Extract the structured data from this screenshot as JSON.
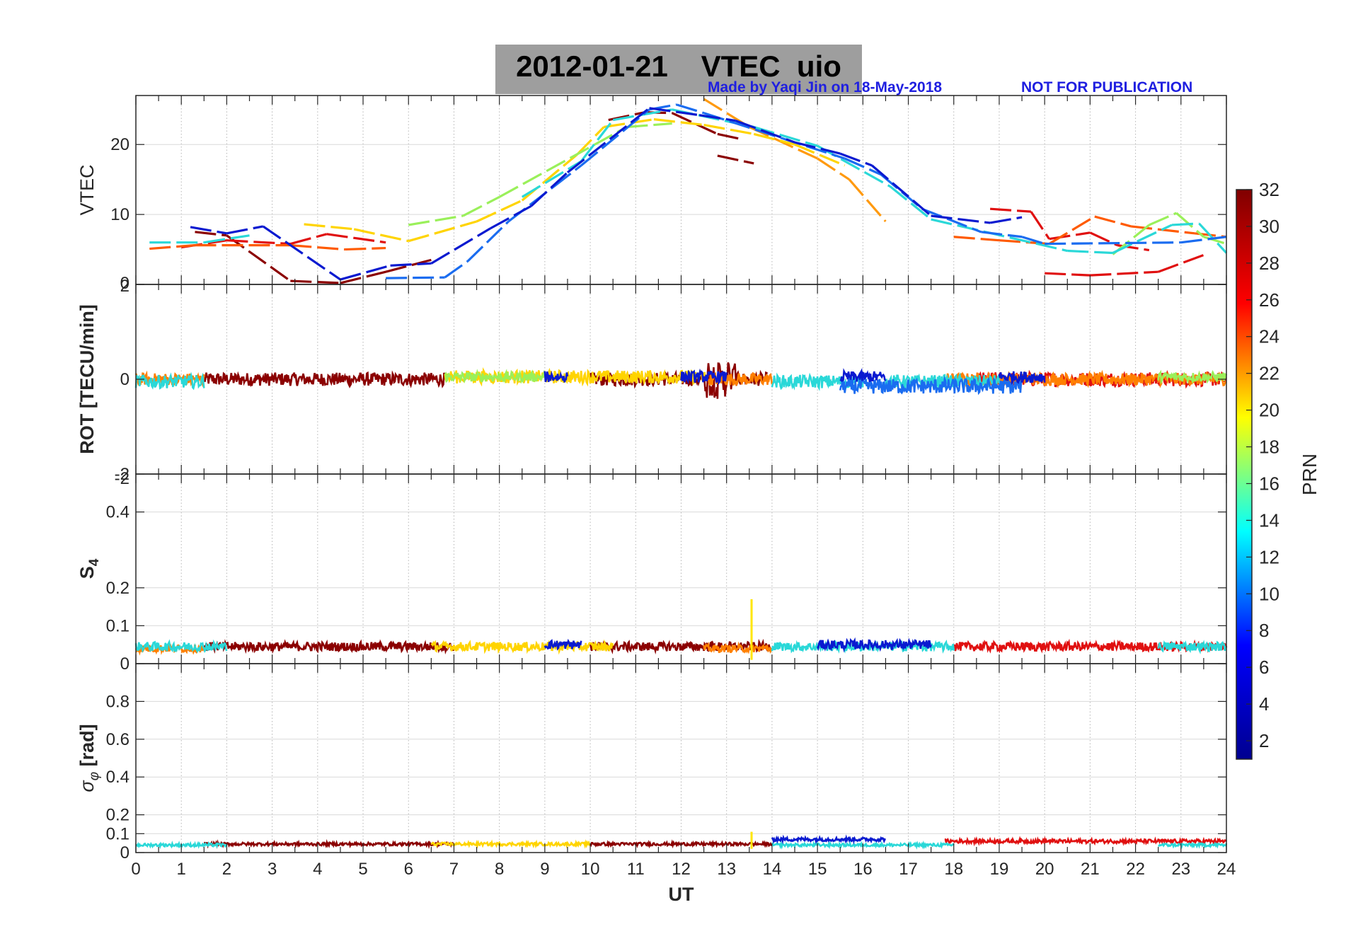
{
  "figure": {
    "title": "2012-01-21    VTEC  uio",
    "credit": "Made by Yaqi Jin on 18-May-2018",
    "notice": "NOT FOR PUBLICATION",
    "colors": {
      "background": "#ffffff",
      "title_box": "#9e9e9e",
      "credit": "#1f1fe0",
      "grid": "#d9d9d9"
    }
  },
  "chart_data": [
    {
      "id": "vtec",
      "type": "line",
      "ylabel": "VTEC",
      "xlim": [
        0,
        24
      ],
      "ylim": [
        0,
        27
      ],
      "yticks": [
        0,
        10,
        20
      ],
      "ytick_labels": [
        "0",
        "10",
        "20"
      ],
      "series": [
        {
          "name": "PRN 32",
          "color": "#8b0000",
          "points": [
            [
              1.3,
              7.5
            ],
            [
              2.0,
              7.0
            ],
            [
              3.4,
              0.5
            ],
            [
              4.5,
              0.2
            ],
            [
              5.5,
              1.8
            ],
            [
              6.5,
              3.5
            ],
            [
              10.4,
              23.5
            ],
            [
              11.2,
              24.6
            ],
            [
              11.8,
              24.5
            ],
            [
              12.8,
              21.5
            ],
            [
              13.3,
              20.8
            ],
            [
              12.8,
              18.4
            ],
            [
              13.6,
              17.3
            ]
          ]
        },
        {
          "name": "PRN 28",
          "color": "#e01010",
          "points": [
            [
              1.0,
              5.3
            ],
            [
              2.0,
              6.3
            ],
            [
              3.4,
              5.8
            ],
            [
              4.2,
              7.2
            ],
            [
              5.5,
              6.0
            ],
            [
              18.8,
              10.8
            ],
            [
              19.7,
              10.4
            ],
            [
              20.1,
              6.5
            ],
            [
              21.0,
              7.4
            ],
            [
              21.6,
              5.6
            ],
            [
              22.3,
              4.9
            ],
            [
              20.0,
              1.6
            ],
            [
              21.0,
              1.3
            ],
            [
              22.5,
              1.8
            ],
            [
              23.5,
              4.2
            ]
          ]
        },
        {
          "name": "PRN 25",
          "color": "#ff5a00",
          "points": [
            [
              0.3,
              5.1
            ],
            [
              1.3,
              5.6
            ],
            [
              3.4,
              5.6
            ],
            [
              4.6,
              5.0
            ],
            [
              5.5,
              5.2
            ],
            [
              18.0,
              6.8
            ],
            [
              19.0,
              6.3
            ],
            [
              20.1,
              5.8
            ],
            [
              21.1,
              9.7
            ],
            [
              21.9,
              8.3
            ],
            [
              23.3,
              7.3
            ],
            [
              24.0,
              6.8
            ]
          ]
        },
        {
          "name": "PRN 22",
          "color": "#ff9a10",
          "points": [
            [
              12.5,
              26.5
            ],
            [
              13.5,
              22.5
            ],
            [
              15.0,
              18.0
            ],
            [
              15.7,
              15.0
            ],
            [
              16.5,
              9.0
            ]
          ]
        },
        {
          "name": "PRN 19",
          "color": "#ffd400",
          "points": [
            [
              3.7,
              8.6
            ],
            [
              4.8,
              7.9
            ],
            [
              6.0,
              6.2
            ],
            [
              7.5,
              9.0
            ],
            [
              8.5,
              12.0
            ],
            [
              9.7,
              18.5
            ],
            [
              10.3,
              22.5
            ],
            [
              11.4,
              23.6
            ],
            [
              12.5,
              22.8
            ],
            [
              13.6,
              21.5
            ],
            [
              14.5,
              20.0
            ],
            [
              15.6,
              17.0
            ]
          ]
        },
        {
          "name": "PRN 16",
          "color": "#9af05a",
          "points": [
            [
              6.0,
              8.5
            ],
            [
              7.2,
              9.8
            ],
            [
              8.0,
              12.5
            ],
            [
              10.8,
              22.5
            ],
            [
              11.8,
              23.0
            ],
            [
              21.5,
              4.3
            ],
            [
              22.3,
              8.5
            ],
            [
              22.9,
              10.2
            ],
            [
              23.5,
              6.8
            ],
            [
              24.0,
              5.8
            ]
          ]
        },
        {
          "name": "PRN 12",
          "color": "#2ad8d8",
          "points": [
            [
              0.3,
              6.0
            ],
            [
              1.5,
              6.0
            ],
            [
              2.5,
              7.0
            ],
            [
              8.5,
              12.5
            ],
            [
              9.8,
              17.6
            ],
            [
              10.5,
              23.5
            ],
            [
              11.8,
              25.0
            ],
            [
              13.6,
              22.5
            ],
            [
              15.0,
              19.8
            ],
            [
              16.6,
              14.0
            ],
            [
              17.5,
              9.3
            ],
            [
              20.5,
              4.8
            ],
            [
              21.5,
              4.5
            ],
            [
              22.8,
              8.5
            ],
            [
              23.4,
              8.7
            ],
            [
              24.0,
              4.5
            ]
          ]
        },
        {
          "name": "PRN 8",
          "color": "#1a6cf0",
          "points": [
            [
              5.5,
              0.9
            ],
            [
              6.8,
              1.0
            ],
            [
              7.3,
              3.3
            ],
            [
              8.2,
              9.0
            ],
            [
              9.2,
              14.0
            ],
            [
              9.8,
              17.0
            ],
            [
              11.3,
              25.0
            ],
            [
              11.9,
              25.7
            ],
            [
              12.5,
              24.5
            ],
            [
              15.6,
              18.0
            ],
            [
              16.4,
              15.7
            ],
            [
              17.3,
              10.8
            ],
            [
              18.6,
              7.5
            ],
            [
              19.5,
              6.8
            ],
            [
              20.0,
              5.8
            ],
            [
              23.0,
              6.0
            ],
            [
              24.0,
              6.8
            ]
          ]
        },
        {
          "name": "PRN 3",
          "color": "#0a1ad0",
          "points": [
            [
              1.2,
              8.2
            ],
            [
              2.0,
              7.3
            ],
            [
              2.8,
              8.3
            ],
            [
              4.5,
              0.7
            ],
            [
              5.6,
              2.7
            ],
            [
              6.5,
              3.0
            ],
            [
              7.8,
              8.0
            ],
            [
              8.7,
              11.2
            ],
            [
              9.5,
              16.0
            ],
            [
              11.3,
              25.2
            ],
            [
              12.4,
              24.2
            ],
            [
              13.2,
              23.4
            ],
            [
              14.5,
              20.3
            ],
            [
              15.5,
              18.7
            ],
            [
              16.2,
              17.0
            ],
            [
              17.5,
              9.8
            ],
            [
              18.8,
              8.8
            ],
            [
              19.5,
              9.6
            ]
          ]
        }
      ]
    },
    {
      "id": "rot",
      "type": "line",
      "ylabel": "ROT [TECU/min]",
      "xlim": [
        0,
        24
      ],
      "ylim": [
        -2,
        2
      ],
      "yticks": [
        -2,
        0,
        2
      ],
      "ytick_labels": [
        "-2",
        "0",
        "2"
      ],
      "series": [
        {
          "name": "PRN 32",
          "color": "#8b0000",
          "ranges": [
            [
              1.5,
              6.8
            ],
            [
              10.0,
              13.9
            ]
          ],
          "base": 0.0,
          "noise": 0.14
        },
        {
          "name": "PRN 28",
          "color": "#e01010",
          "ranges": [
            [
              18.5,
              24.0
            ]
          ],
          "base": 0.0,
          "noise": 0.15
        },
        {
          "name": "PRN 24",
          "color": "#ff8000",
          "ranges": [
            [
              0.0,
              1.5
            ],
            [
              12.6,
              14.0
            ],
            [
              17.8,
              24.0
            ]
          ],
          "base": 0.0,
          "noise": 0.13
        },
        {
          "name": "PRN 20",
          "color": "#ffd400",
          "ranges": [
            [
              6.8,
              10.0
            ],
            [
              10.0,
              12.6
            ]
          ],
          "base": 0.05,
          "noise": 0.14
        },
        {
          "name": "PRN 16",
          "color": "#9af05a",
          "ranges": [
            [
              6.8,
              9.0
            ],
            [
              22.5,
              24.0
            ]
          ],
          "base": 0.05,
          "noise": 0.1
        },
        {
          "name": "PRN 12",
          "color": "#2ad8d8",
          "ranges": [
            [
              0.0,
              1.5
            ],
            [
              14.0,
              16.0
            ],
            [
              16.5,
              19.0
            ]
          ],
          "base": -0.05,
          "noise": 0.14
        },
        {
          "name": "PRN 8",
          "color": "#1a6cf0",
          "ranges": [
            [
              15.5,
              17.5
            ],
            [
              17.5,
              19.5
            ]
          ],
          "base": -0.15,
          "noise": 0.16
        },
        {
          "name": "PRN 3",
          "color": "#0a1ad0",
          "ranges": [
            [
              9.0,
              9.5
            ],
            [
              12.0,
              13.0
            ],
            [
              15.5,
              16.5
            ],
            [
              19.0,
              20.0
            ]
          ],
          "base": 0.05,
          "noise": 0.12
        }
      ]
    },
    {
      "id": "s4",
      "type": "line",
      "ylabel": "S4",
      "ylabel_main": "S",
      "ylabel_sub": "4",
      "xlim": [
        0,
        24
      ],
      "ylim": [
        0,
        0.5
      ],
      "yticks": [
        0,
        0.1,
        0.2,
        0.4
      ],
      "ytick_labels": [
        "0",
        "0.1",
        "0.2",
        "0.4"
      ],
      "spike": {
        "x": 13.55,
        "y": 0.17,
        "color": "#ffe600"
      },
      "series": [
        {
          "name": "PRN 32",
          "color": "#8b0000",
          "ranges": [
            [
              1.5,
              7.0
            ],
            [
              10.0,
              14.0
            ]
          ],
          "base": 0.045,
          "noise": 0.012
        },
        {
          "name": "PRN 28",
          "color": "#e01010",
          "ranges": [
            [
              18.0,
              24.0
            ]
          ],
          "base": 0.045,
          "noise": 0.012
        },
        {
          "name": "PRN 24",
          "color": "#ff8000",
          "ranges": [
            [
              0.0,
              1.5
            ],
            [
              12.5,
              14.0
            ]
          ],
          "base": 0.04,
          "noise": 0.01
        },
        {
          "name": "PRN 20",
          "color": "#ffd400",
          "ranges": [
            [
              6.5,
              10.5
            ]
          ],
          "base": 0.045,
          "noise": 0.012
        },
        {
          "name": "PRN 12",
          "color": "#2ad8d8",
          "ranges": [
            [
              0.0,
              2.0
            ],
            [
              14.0,
              18.0
            ],
            [
              22.5,
              24.0
            ]
          ],
          "base": 0.045,
          "noise": 0.012
        },
        {
          "name": "PRN 3",
          "color": "#0a1ad0",
          "ranges": [
            [
              9.0,
              9.8
            ],
            [
              15.0,
              17.5
            ]
          ],
          "base": 0.05,
          "noise": 0.012
        }
      ]
    },
    {
      "id": "sigma",
      "type": "line",
      "ylabel": "σφ [rad]",
      "ylabel_sym": "σ",
      "ylabel_sub": "φ",
      "ylabel_unit": " [rad]",
      "xlim": [
        0,
        24
      ],
      "ylim": [
        0,
        1
      ],
      "yticks": [
        0,
        0.1,
        0.2,
        0.4,
        0.6,
        0.8
      ],
      "ytick_labels": [
        "0",
        "0.1",
        "0.2",
        "0.4",
        "0.6",
        "0.8"
      ],
      "spike": {
        "x": 13.55,
        "y": 0.11,
        "color": "#ffe600"
      },
      "series": [
        {
          "name": "PRN 32",
          "color": "#8b0000",
          "ranges": [
            [
              1.5,
              7.0
            ],
            [
              10.0,
              14.0
            ]
          ],
          "base": 0.045,
          "noise": 0.008
        },
        {
          "name": "PRN 28",
          "color": "#e01010",
          "ranges": [
            [
              17.8,
              24.0
            ]
          ],
          "base": 0.06,
          "noise": 0.01
        },
        {
          "name": "PRN 20",
          "color": "#ffd400",
          "ranges": [
            [
              6.5,
              10.0
            ]
          ],
          "base": 0.045,
          "noise": 0.008
        },
        {
          "name": "PRN 12",
          "color": "#2ad8d8",
          "ranges": [
            [
              0.0,
              2.0
            ],
            [
              14.0,
              18.0
            ],
            [
              22.5,
              24.0
            ]
          ],
          "base": 0.04,
          "noise": 0.008
        },
        {
          "name": "PRN 3",
          "color": "#0a1ad0",
          "ranges": [
            [
              14.0,
              16.5
            ]
          ],
          "base": 0.07,
          "noise": 0.01
        }
      ]
    }
  ],
  "x_axis": {
    "label": "UT",
    "ticks": [
      0,
      1,
      2,
      3,
      4,
      5,
      6,
      7,
      8,
      9,
      10,
      11,
      12,
      13,
      14,
      15,
      16,
      17,
      18,
      19,
      20,
      21,
      22,
      23,
      24
    ],
    "tick_labels": [
      "0",
      "1",
      "2",
      "3",
      "4",
      "5",
      "6",
      "7",
      "8",
      "9",
      "10",
      "11",
      "12",
      "13",
      "14",
      "15",
      "16",
      "17",
      "18",
      "19",
      "20",
      "21",
      "22",
      "23",
      "24"
    ]
  },
  "colorbar": {
    "label": "PRN",
    "range": [
      1,
      32
    ],
    "ticks": [
      2,
      4,
      6,
      8,
      10,
      12,
      14,
      16,
      18,
      20,
      22,
      24,
      26,
      28,
      30,
      32
    ],
    "tick_labels": [
      "2",
      "4",
      "6",
      "8",
      "10",
      "12",
      "14",
      "16",
      "18",
      "20",
      "22",
      "24",
      "26",
      "28",
      "30",
      "32"
    ],
    "colormap_stops": [
      "#00008f",
      "#0000ff",
      "#00ffff",
      "#ffff00",
      "#ff0000",
      "#800000"
    ]
  }
}
